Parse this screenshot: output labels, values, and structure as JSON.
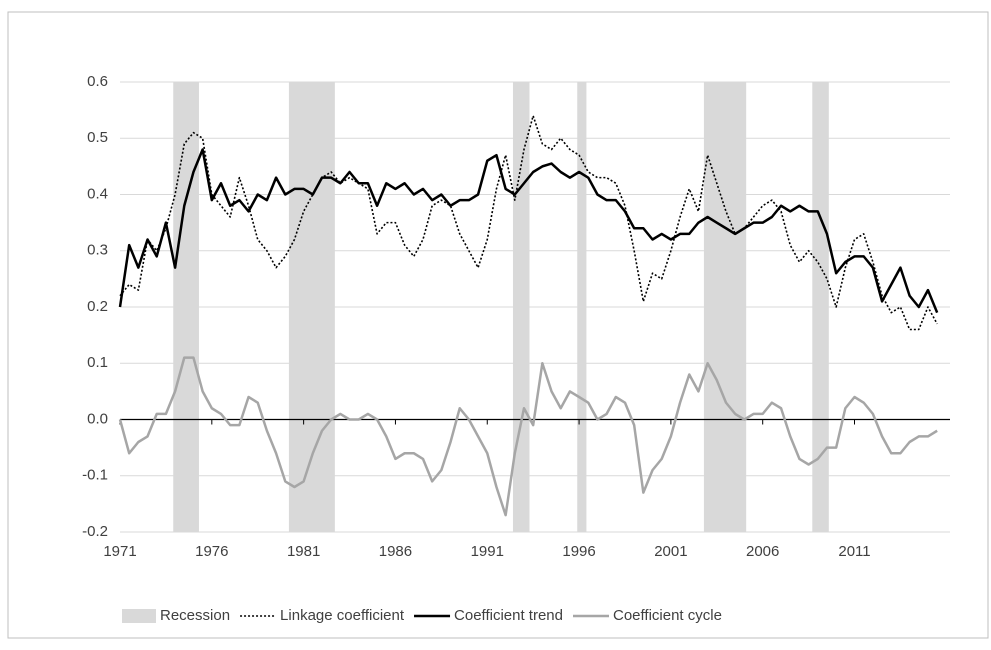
{
  "chart_data": {
    "type": "line",
    "x": [
      1971,
      1971.5,
      1972,
      1972.5,
      1973,
      1973.5,
      1974,
      1974.5,
      1975,
      1975.5,
      1976,
      1976.5,
      1977,
      1977.5,
      1978,
      1978.5,
      1979,
      1979.5,
      1980,
      1980.5,
      1981,
      1981.5,
      1982,
      1982.5,
      1983,
      1983.5,
      1984,
      1984.5,
      1985,
      1985.5,
      1986,
      1986.5,
      1987,
      1987.5,
      1988,
      1988.5,
      1989,
      1989.5,
      1990,
      1990.5,
      1991,
      1991.5,
      1992,
      1992.5,
      1993,
      1993.5,
      1994,
      1994.5,
      1995,
      1995.5,
      1996,
      1996.5,
      1997,
      1997.5,
      1998,
      1998.5,
      1999,
      1999.5,
      2000,
      2000.5,
      2001,
      2001.5,
      2002,
      2002.5,
      2003,
      2003.5,
      2004,
      2004.5,
      2005,
      2005.5,
      2006,
      2006.5,
      2007,
      2007.5,
      2008,
      2008.5,
      2009,
      2009.5,
      2010,
      2010.5,
      2011,
      2011.5,
      2012,
      2012.5,
      2013,
      2013.5,
      2014,
      2014.5,
      2015,
      2015.5
    ],
    "recessions": {
      "name": "Recession",
      "color": "#d9d9d9",
      "periods": [
        [
          1973.9,
          1975.3
        ],
        [
          1980.2,
          1982.7
        ],
        [
          1992.4,
          1993.3
        ],
        [
          1995.9,
          1996.4
        ],
        [
          2002.8,
          2005.1
        ],
        [
          2008.7,
          2009.6
        ]
      ]
    },
    "series": [
      {
        "name": "Linkage coefficient",
        "color": "#000000",
        "style": "dotted",
        "values": [
          0.22,
          0.24,
          0.23,
          0.32,
          0.3,
          0.34,
          0.4,
          0.49,
          0.51,
          0.5,
          0.4,
          0.38,
          0.36,
          0.43,
          0.38,
          0.32,
          0.3,
          0.27,
          0.29,
          0.32,
          0.37,
          0.4,
          0.43,
          0.44,
          0.42,
          0.43,
          0.42,
          0.41,
          0.33,
          0.35,
          0.35,
          0.31,
          0.29,
          0.32,
          0.38,
          0.39,
          0.38,
          0.33,
          0.3,
          0.27,
          0.32,
          0.41,
          0.47,
          0.39,
          0.48,
          0.54,
          0.49,
          0.48,
          0.5,
          0.48,
          0.47,
          0.44,
          0.43,
          0.43,
          0.42,
          0.38,
          0.3,
          0.21,
          0.26,
          0.25,
          0.3,
          0.36,
          0.41,
          0.37,
          0.47,
          0.42,
          0.37,
          0.33,
          0.34,
          0.36,
          0.38,
          0.39,
          0.37,
          0.31,
          0.28,
          0.3,
          0.28,
          0.25,
          0.2,
          0.27,
          0.32,
          0.33,
          0.28,
          0.22,
          0.19,
          0.2,
          0.16,
          0.16,
          0.2,
          0.17
        ]
      },
      {
        "name": "Coefficient trend",
        "color": "#000000",
        "style": "solid",
        "values": [
          0.2,
          0.31,
          0.27,
          0.32,
          0.29,
          0.35,
          0.27,
          0.38,
          0.44,
          0.48,
          0.39,
          0.42,
          0.38,
          0.39,
          0.37,
          0.4,
          0.39,
          0.43,
          0.4,
          0.41,
          0.41,
          0.4,
          0.43,
          0.43,
          0.42,
          0.44,
          0.42,
          0.42,
          0.38,
          0.42,
          0.41,
          0.42,
          0.4,
          0.41,
          0.39,
          0.4,
          0.38,
          0.39,
          0.39,
          0.4,
          0.46,
          0.47,
          0.41,
          0.4,
          0.42,
          0.44,
          0.45,
          0.455,
          0.44,
          0.43,
          0.44,
          0.43,
          0.4,
          0.39,
          0.39,
          0.37,
          0.34,
          0.34,
          0.32,
          0.33,
          0.32,
          0.33,
          0.33,
          0.35,
          0.36,
          0.35,
          0.34,
          0.33,
          0.34,
          0.35,
          0.35,
          0.36,
          0.38,
          0.37,
          0.38,
          0.37,
          0.37,
          0.33,
          0.26,
          0.28,
          0.29,
          0.29,
          0.27,
          0.21,
          0.24,
          0.27,
          0.22,
          0.2,
          0.23,
          0.19
        ]
      },
      {
        "name": "Coefficient cycle",
        "color": "#a6a6a6",
        "style": "solid",
        "values": [
          0.0,
          -0.06,
          -0.04,
          -0.03,
          0.01,
          0.01,
          0.05,
          0.11,
          0.11,
          0.05,
          0.02,
          0.01,
          -0.01,
          -0.01,
          0.04,
          0.03,
          -0.02,
          -0.06,
          -0.11,
          -0.12,
          -0.11,
          -0.06,
          -0.02,
          0.0,
          0.01,
          0.0,
          0.0,
          0.01,
          0.0,
          -0.03,
          -0.07,
          -0.06,
          -0.06,
          -0.07,
          -0.11,
          -0.09,
          -0.04,
          0.02,
          0.0,
          -0.03,
          -0.06,
          -0.12,
          -0.17,
          -0.06,
          0.02,
          -0.01,
          0.1,
          0.05,
          0.02,
          0.05,
          0.04,
          0.03,
          0.0,
          0.01,
          0.04,
          0.03,
          -0.01,
          -0.13,
          -0.09,
          -0.07,
          -0.03,
          0.03,
          0.08,
          0.05,
          0.1,
          0.07,
          0.03,
          0.01,
          0.0,
          0.01,
          0.01,
          0.03,
          0.02,
          -0.03,
          -0.07,
          -0.08,
          -0.07,
          -0.05,
          -0.05,
          0.02,
          0.04,
          0.03,
          0.01,
          -0.03,
          -0.06,
          -0.06,
          -0.04,
          -0.03,
          -0.03,
          -0.02
        ]
      }
    ],
    "xlim": [
      1971,
      2016.2
    ],
    "xticks": [
      1971,
      1976,
      1981,
      1986,
      1991,
      1996,
      2001,
      2006,
      2011
    ],
    "ylim": [
      -0.2,
      0.6
    ],
    "yticks": [
      0.6,
      0.5,
      0.4,
      0.3,
      0.2,
      0.1,
      {
        "value": 0,
        "label": "0.0"
      },
      -0.1,
      -0.2
    ],
    "grid": true,
    "legend": "bottom"
  }
}
